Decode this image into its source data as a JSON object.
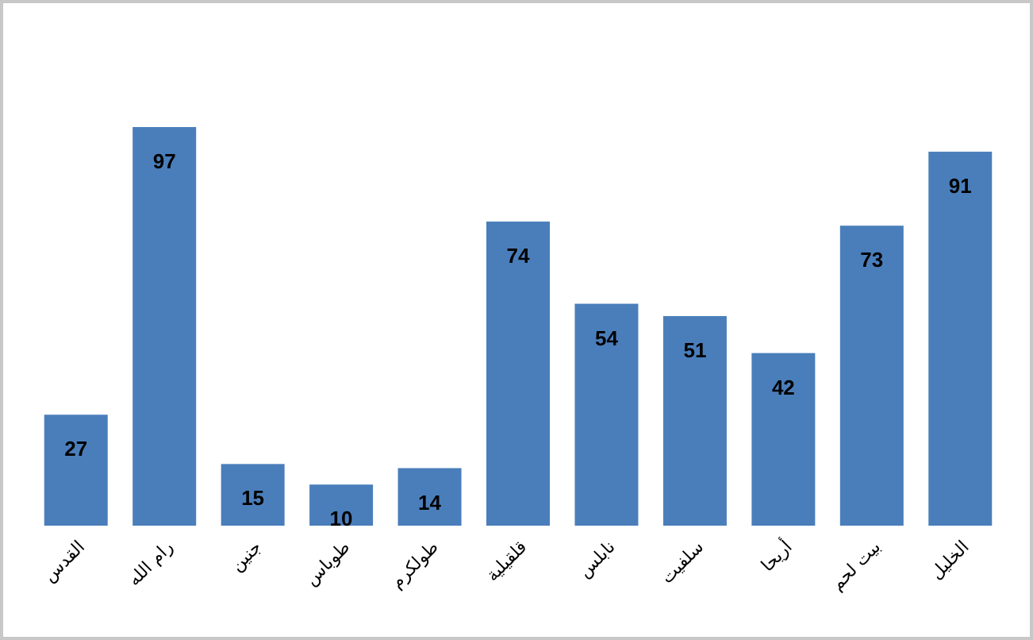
{
  "chart_data": {
    "type": "bar",
    "categories": [
      "القدس",
      "رام الله",
      "جنين",
      "طوباس",
      "طولكرم",
      "قلقيلية",
      "نابلس",
      "سلفيت",
      "أريحا",
      "بيت لحم",
      "الخليل"
    ],
    "values": [
      27,
      97,
      15,
      10,
      14,
      74,
      54,
      51,
      42,
      73,
      91
    ],
    "color": "#4a7ebb",
    "data_labels": true
  }
}
